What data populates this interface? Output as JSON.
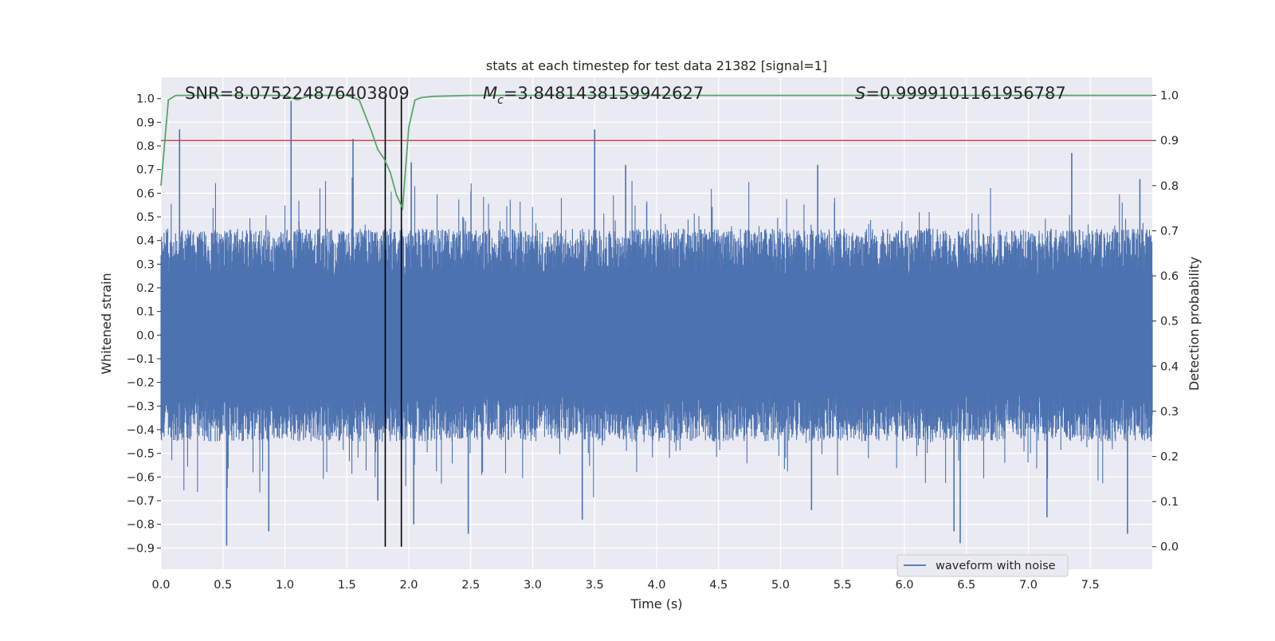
{
  "chart_data": {
    "type": "line",
    "title": "stats at each timestep for test data 21382 [signal=1]",
    "xlabel": "Time (s)",
    "ylabel": "Whitened strain",
    "y2label": "Detection probability",
    "xlim": [
      0.0,
      8.0
    ],
    "ylim": [
      -0.99,
      1.09
    ],
    "y2lim": [
      -0.05,
      1.04
    ],
    "xticks": [
      "0.0",
      "0.5",
      "1.0",
      "1.5",
      "2.0",
      "2.5",
      "3.0",
      "3.5",
      "4.0",
      "4.5",
      "5.0",
      "5.5",
      "6.0",
      "6.5",
      "7.0",
      "7.5"
    ],
    "xtick_values": [
      0.0,
      0.5,
      1.0,
      1.5,
      2.0,
      2.5,
      3.0,
      3.5,
      4.0,
      4.5,
      5.0,
      5.5,
      6.0,
      6.5,
      7.0,
      7.5
    ],
    "yticks": [
      "−0.9",
      "−0.8",
      "−0.7",
      "−0.6",
      "−0.5",
      "−0.4",
      "−0.3",
      "−0.2",
      "−0.1",
      "0.0",
      "0.1",
      "0.2",
      "0.3",
      "0.4",
      "0.5",
      "0.6",
      "0.7",
      "0.8",
      "0.9",
      "1.0"
    ],
    "ytick_values": [
      -0.9,
      -0.8,
      -0.7,
      -0.6,
      -0.5,
      -0.4,
      -0.3,
      -0.2,
      -0.1,
      0.0,
      0.1,
      0.2,
      0.3,
      0.4,
      0.5,
      0.6,
      0.7,
      0.8,
      0.9,
      1.0
    ],
    "y2ticks": [
      "0.0",
      "0.1",
      "0.2",
      "0.3",
      "0.4",
      "0.5",
      "0.6",
      "0.7",
      "0.8",
      "0.9",
      "1.0"
    ],
    "y2tick_values": [
      0.0,
      0.1,
      0.2,
      0.3,
      0.4,
      0.5,
      0.6,
      0.7,
      0.8,
      0.9,
      1.0
    ],
    "annotations": {
      "snr": "SNR=8.075224876403809",
      "mc_symbol": "M",
      "mc_sub": "c",
      "mc_value": "=3.8481438159942627",
      "s_symbol": "S",
      "s_value": "=0.9999101161956787"
    },
    "series": [
      {
        "name": "waveform with noise",
        "axis": "left",
        "color": "#4c72b0",
        "style": "noise",
        "x_range": [
          0.0,
          8.0
        ],
        "envelope_typical": [
          -0.45,
          0.45
        ],
        "peaks": [
          {
            "x": 0.15,
            "y": 0.87
          },
          {
            "x": 1.05,
            "y": 0.99
          },
          {
            "x": 1.55,
            "y": 0.83
          },
          {
            "x": 2.02,
            "y": 0.73
          },
          {
            "x": 3.5,
            "y": 0.87
          },
          {
            "x": 3.75,
            "y": 0.72
          },
          {
            "x": 5.3,
            "y": 0.72
          },
          {
            "x": 7.35,
            "y": 0.77
          },
          {
            "x": 7.9,
            "y": 0.66
          },
          {
            "x": 0.53,
            "y": -0.89
          },
          {
            "x": 0.87,
            "y": -0.83
          },
          {
            "x": 2.48,
            "y": -0.84
          },
          {
            "x": 3.4,
            "y": -0.78
          },
          {
            "x": 5.25,
            "y": -0.74
          },
          {
            "x": 6.4,
            "y": -0.83
          },
          {
            "x": 6.45,
            "y": -0.88
          },
          {
            "x": 7.15,
            "y": -0.77
          },
          {
            "x": 7.8,
            "y": -0.84
          },
          {
            "x": 2.04,
            "y": -0.8
          },
          {
            "x": 1.75,
            "y": -0.7
          }
        ]
      },
      {
        "name": "detection probability",
        "axis": "right",
        "color": "#55a868",
        "x": [
          0.0,
          0.06,
          0.12,
          0.5,
          1.0,
          1.1,
          1.2,
          1.5,
          1.6,
          1.7,
          1.75,
          1.8,
          1.85,
          1.9,
          1.95,
          2.0,
          2.05,
          2.1,
          2.2,
          2.5,
          8.0
        ],
        "y": [
          0.8,
          0.99,
          1.0,
          1.0,
          1.0,
          0.99,
          1.0,
          1.0,
          0.99,
          0.92,
          0.88,
          0.86,
          0.83,
          0.78,
          0.75,
          0.93,
          0.99,
          0.995,
          0.998,
          1.0,
          1.0
        ]
      },
      {
        "name": "threshold",
        "axis": "right",
        "color": "#c44e52",
        "y": 0.9
      }
    ],
    "vertical_lines": [
      1.81,
      1.94
    ],
    "legend": {
      "entries": [
        "waveform with noise"
      ],
      "location": "lower-right"
    },
    "colors": {
      "background": "#eaeaf2",
      "grid": "#ffffff",
      "text": "#262626",
      "vline": "#000000"
    }
  }
}
